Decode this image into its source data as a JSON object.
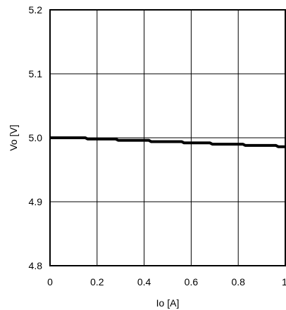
{
  "chart_data": {
    "type": "line",
    "xlabel": "Io [A]",
    "ylabel": "Vo [V]",
    "xlim": [
      0,
      1
    ],
    "ylim": [
      4.8,
      5.2
    ],
    "x_ticks": [
      "0",
      "0.2",
      "0.4",
      "0.6",
      "0.8",
      "1"
    ],
    "y_ticks": [
      "5.2",
      "5.1",
      "5.0",
      "4.9",
      "4.8"
    ],
    "grid": true,
    "series": [
      {
        "x": [
          0,
          0.15,
          0.16,
          0.28,
          0.29,
          0.42,
          0.43,
          0.56,
          0.57,
          0.68,
          0.69,
          0.82,
          0.83,
          0.96,
          0.97,
          1.0
        ],
        "y": [
          5.0,
          5.0,
          4.998,
          4.998,
          4.996,
          4.996,
          4.994,
          4.994,
          4.992,
          4.992,
          4.99,
          4.99,
          4.988,
          4.988,
          4.986,
          4.986
        ],
        "color": "#000000"
      }
    ]
  }
}
